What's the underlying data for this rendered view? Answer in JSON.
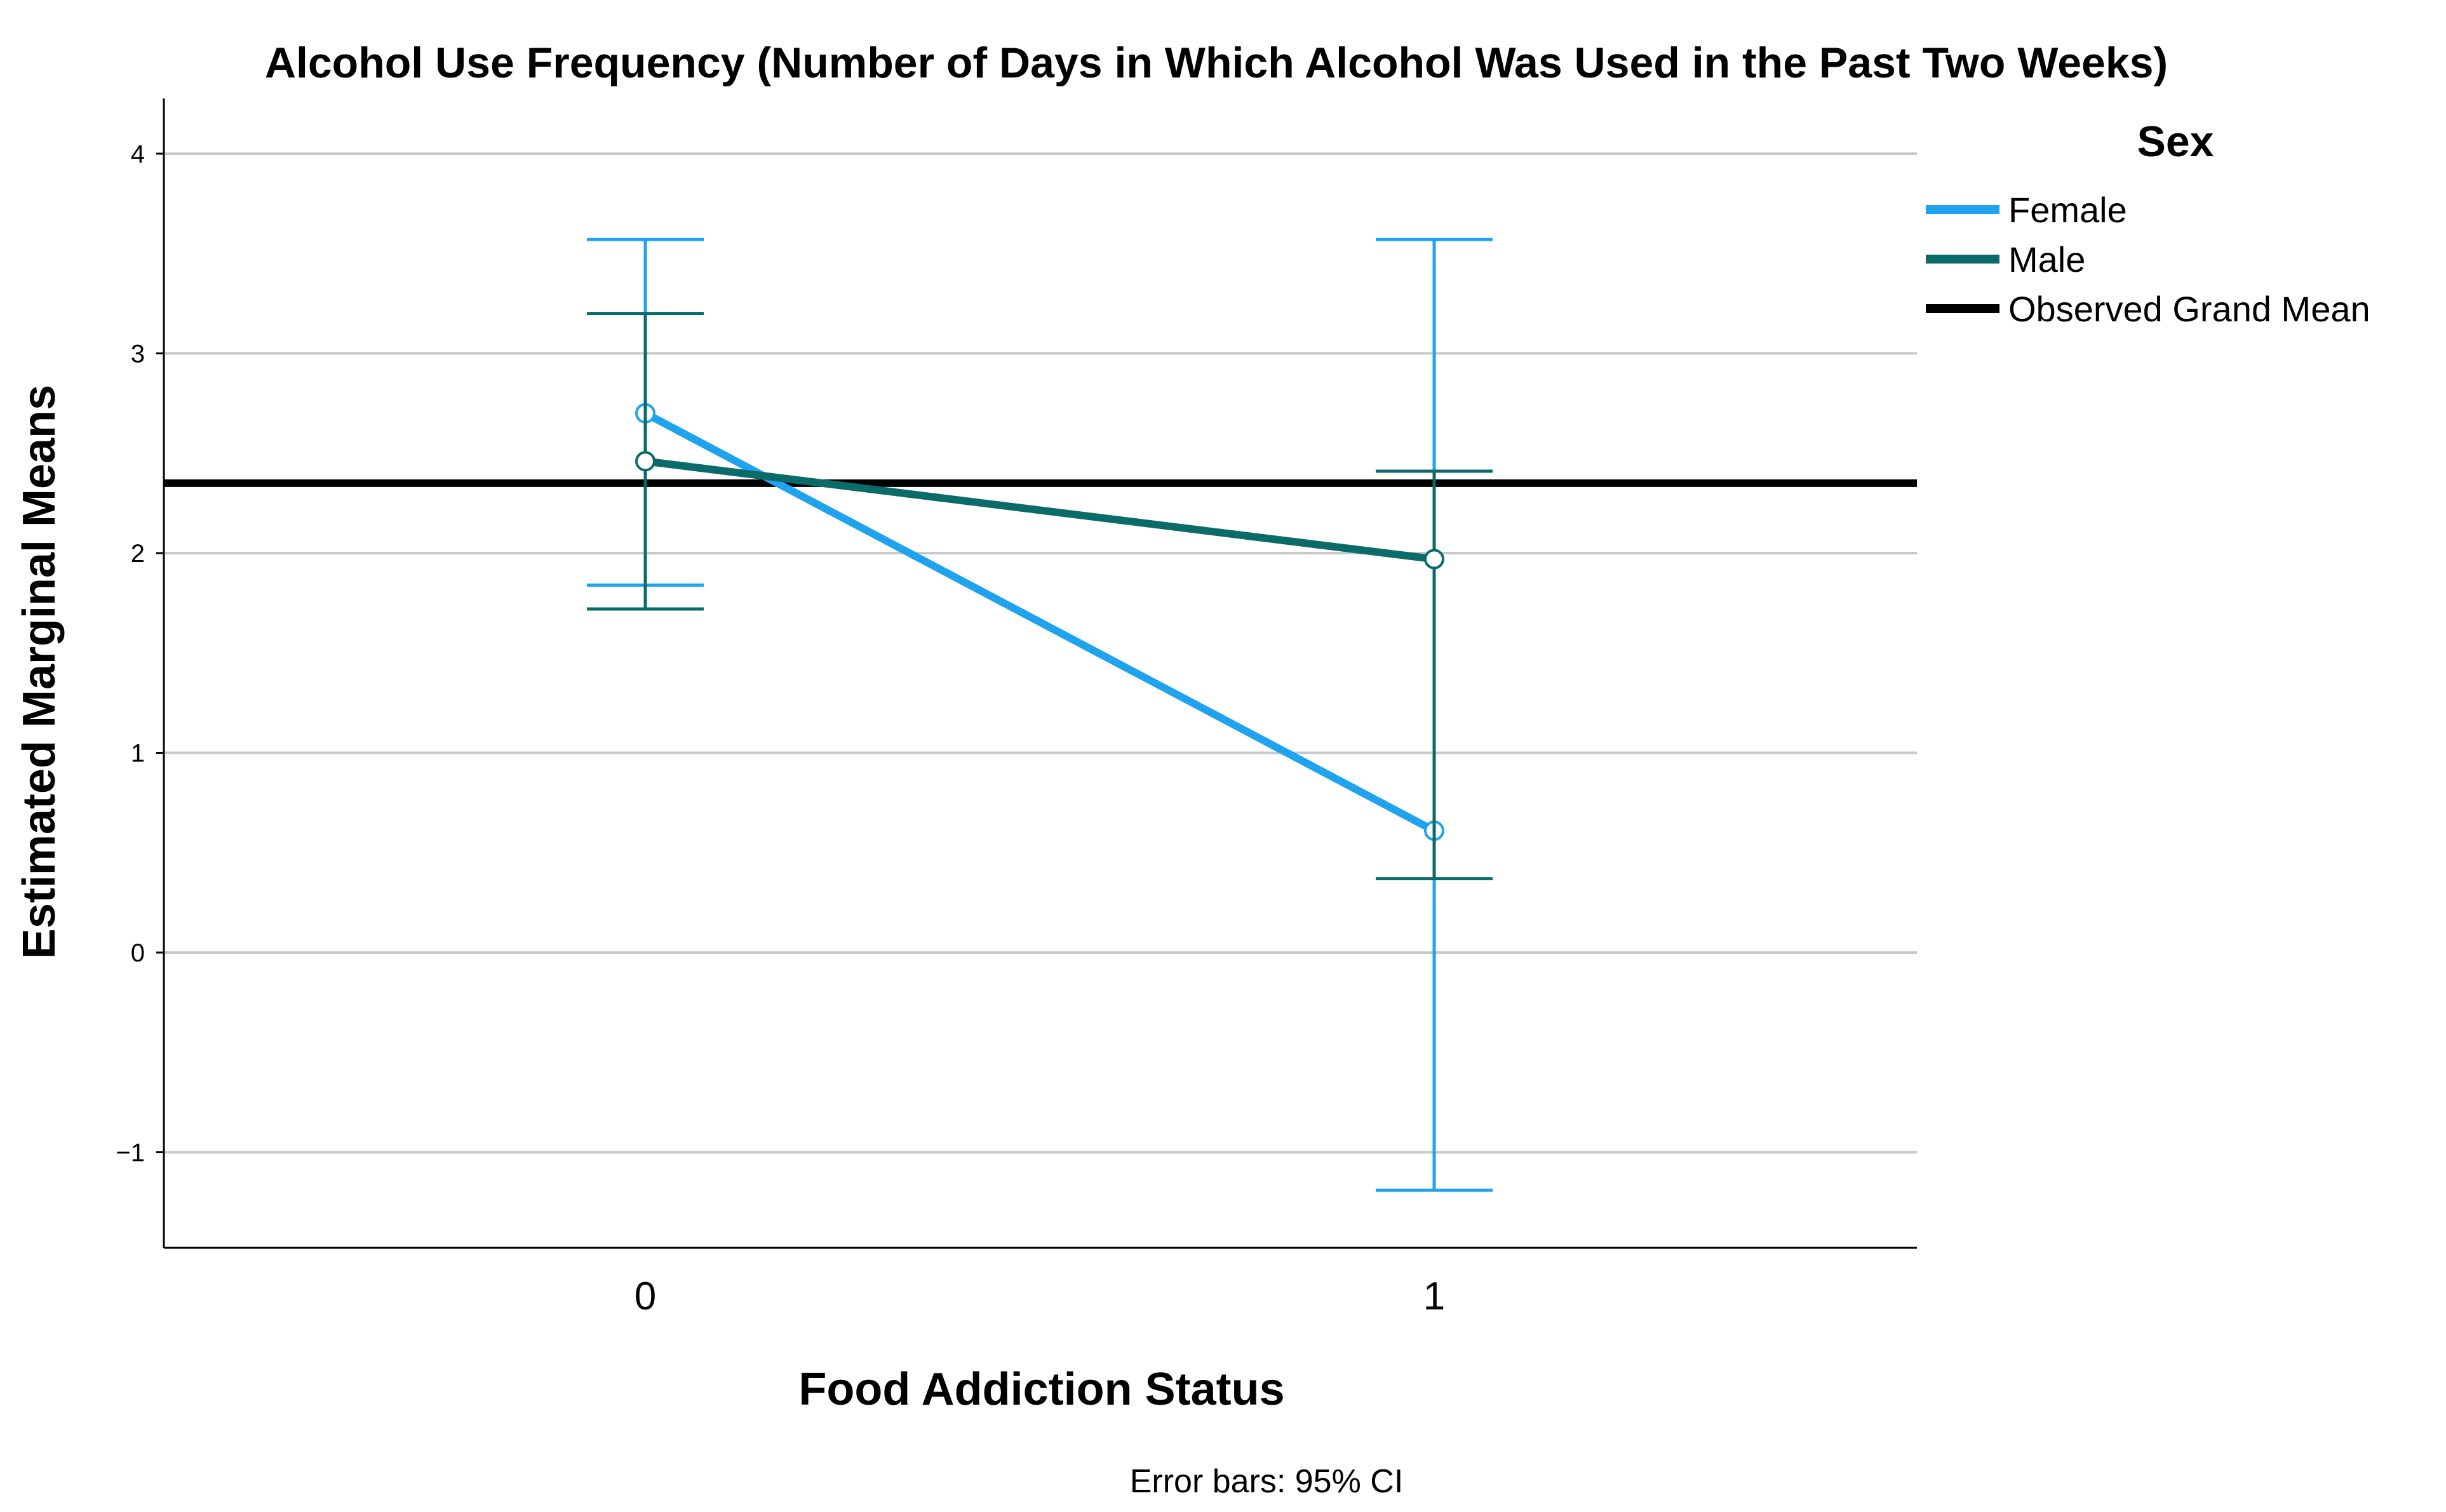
{
  "chart_data": {
    "type": "line",
    "title": "Alcohol Use Frequency (Number of Days in Which Alcohol Was Used in the Past Two Weeks)",
    "xlabel": "Food Addiction Status",
    "ylabel": "Estimated Marginal Means",
    "categories": [
      "0",
      "1"
    ],
    "yticks": [
      -1,
      0,
      1,
      2,
      3,
      4
    ],
    "ytick_labels": [
      "−1",
      "0",
      "1",
      "2",
      "3",
      "4"
    ],
    "ylim": [
      -1.48,
      4.28
    ],
    "grid": true,
    "legend": {
      "title": "Sex",
      "placement": "right",
      "entries": [
        "Female",
        "Male",
        "Observed Grand Mean"
      ]
    },
    "series": [
      {
        "name": "Female",
        "color": "#1fa3ef",
        "values": [
          2.7,
          0.61
        ],
        "ci_lower": [
          1.84,
          -1.19
        ],
        "ci_upper": [
          3.57,
          3.57
        ]
      },
      {
        "name": "Male",
        "color": "#0b6b6b",
        "values": [
          2.46,
          1.97
        ],
        "ci_lower": [
          1.72,
          0.37
        ],
        "ci_upper": [
          3.2,
          2.41
        ]
      }
    ],
    "reference_line": {
      "name": "Observed Grand Mean",
      "value": 2.35,
      "color": "#000000"
    },
    "note": "Error bars: 95% CI"
  }
}
